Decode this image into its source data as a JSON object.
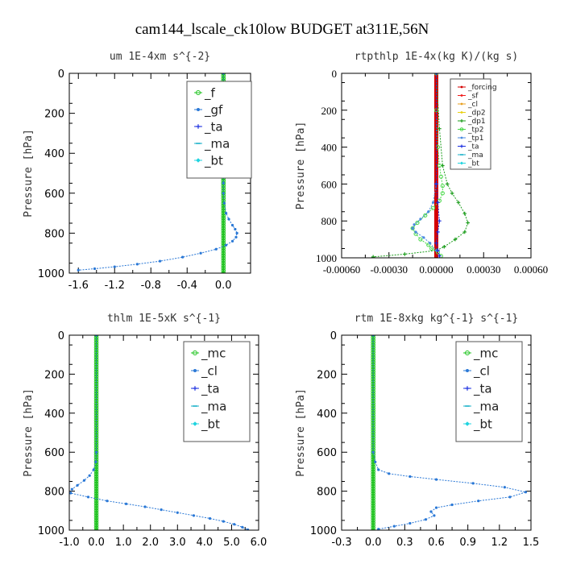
{
  "title": "cam144_lscale_ck10low  BUDGET at311E,56N",
  "chart_data": [
    {
      "type": "line",
      "title": "um   1E-4xm s^{-2}",
      "ylabel": "Pressure [hPa]",
      "xlim": [
        -1.7,
        0.3
      ],
      "ylim": [
        1000,
        0
      ],
      "xticks": [
        -1.6,
        -1.2,
        -0.8,
        -0.4,
        0.0
      ],
      "xtick_labels": [
        "-1.6",
        "-1.2",
        "-0.8",
        "-0.4",
        "0.0"
      ],
      "yticks": [
        0,
        200,
        400,
        600,
        800,
        1000
      ],
      "series": [
        {
          "name": "_f",
          "color": "#22c422",
          "marker": "circle",
          "x": [
            0,
            0
          ],
          "y": [
            0,
            1000
          ]
        },
        {
          "name": "_gf",
          "color": "#2a78d6",
          "marker": "dot",
          "x": [
            0.0,
            0.0,
            0.0,
            0.0,
            0.0,
            0.01,
            0.03,
            0.06,
            0.1,
            0.13,
            0.15,
            0.14,
            0.1,
            0.03,
            -0.08,
            -0.25,
            -0.45,
            -0.7,
            -0.95,
            -1.2,
            -1.42,
            -1.6
          ],
          "y": [
            0,
            200,
            400,
            550,
            600,
            650,
            700,
            730,
            760,
            780,
            800,
            820,
            840,
            860,
            880,
            900,
            920,
            940,
            955,
            968,
            978,
            985
          ]
        },
        {
          "name": "_ta",
          "color": "#1a2ee0",
          "marker": "plus",
          "x": [],
          "y": []
        },
        {
          "name": "_ma",
          "color": "#18b0c8",
          "marker": "dash",
          "x": [],
          "y": []
        },
        {
          "name": "_bt",
          "color": "#20d4e0",
          "marker": "diamond",
          "x": [],
          "y": []
        }
      ]
    },
    {
      "type": "line",
      "title": "rtpthlp   1E-4x(kg K)/(kg s)",
      "ylabel": "Pressure [hPa]",
      "xlim": [
        -0.0006,
        0.0006
      ],
      "ylim": [
        1000,
        0
      ],
      "xticks": [
        -0.0006,
        -0.0003,
        0.0,
        0.0003,
        0.0006
      ],
      "xtick_labels": [
        "-0.00060",
        "-0.00030",
        "0.00000",
        "0.00030",
        "0.00060"
      ],
      "yticks": [
        0,
        200,
        400,
        600,
        800,
        1000
      ],
      "series": [
        {
          "name": "_forcing",
          "color": "#d40000",
          "marker": "dot",
          "x": [
            0,
            0
          ],
          "y": [
            0,
            1000
          ]
        },
        {
          "name": "_sf",
          "color": "#f01a1a",
          "marker": "dot",
          "x": [],
          "y": []
        },
        {
          "name": "_cl",
          "color": "#e8a020",
          "marker": "dot",
          "x": [],
          "y": []
        },
        {
          "name": "_dp2",
          "color": "#e8d010",
          "marker": "dot",
          "x": [],
          "y": []
        },
        {
          "name": "_dp1",
          "color": "#1e9e1e",
          "marker": "plus",
          "x": [
            0.0,
            2e-05,
            4e-05,
            7e-05,
            0.0001,
            0.00014,
            0.00018,
            0.0002,
            0.00018,
            0.00012,
            5e-05,
            0.0,
            -0.0002,
            -0.0004
          ],
          "y": [
            0,
            300,
            500,
            600,
            650,
            700,
            760,
            810,
            860,
            900,
            940,
            960,
            980,
            995
          ]
        },
        {
          "name": "_tp2",
          "color": "#48d848",
          "marker": "circle",
          "x": [
            0.0,
            0.0,
            1e-05,
            2e-05,
            3e-05,
            4e-05,
            4e-05,
            2e-05,
            -2e-05,
            -7e-05,
            -0.00012,
            -0.00015,
            -0.00013,
            -0.0001,
            -5e-05,
            -3e-05,
            1e-05,
            3e-05
          ],
          "y": [
            0,
            200,
            400,
            500,
            560,
            610,
            650,
            690,
            730,
            770,
            810,
            840,
            870,
            900,
            930,
            950,
            970,
            990
          ]
        },
        {
          "name": "_tp1",
          "color": "#4a8ae0",
          "marker": "dot",
          "x": [
            0.0,
            0.0,
            -2e-05,
            -5e-05,
            -0.0001,
            -0.00014,
            -0.00015,
            -0.00013,
            -8e-05,
            -4e-05,
            0.0
          ],
          "y": [
            0,
            600,
            700,
            750,
            790,
            820,
            840,
            860,
            890,
            920,
            960
          ]
        },
        {
          "name": "_ta",
          "color": "#1a2ee0",
          "marker": "plus",
          "x": [
            0.0,
            0.0,
            1e-05,
            2e-05,
            1e-05,
            0.0,
            1e-05,
            2e-05
          ],
          "y": [
            0,
            600,
            700,
            800,
            860,
            920,
            960,
            990
          ]
        },
        {
          "name": "_ma",
          "color": "#18b0c8",
          "marker": "dash",
          "x": [],
          "y": []
        },
        {
          "name": "_bt",
          "color": "#20d4e0",
          "marker": "diamond",
          "x": [],
          "y": []
        }
      ]
    },
    {
      "type": "line",
      "title": "thlm   1E-5xK s^{-1}",
      "ylabel": "Pressure [hPa]",
      "xlim": [
        -1.0,
        6.0
      ],
      "ylim": [
        1000,
        0
      ],
      "xticks": [
        -1.0,
        0.0,
        1.0,
        2.0,
        3.0,
        4.0,
        5.0,
        6.0
      ],
      "xtick_labels": [
        "-1.0",
        "0.0",
        "1.0",
        "2.0",
        "3.0",
        "4.0",
        "5.0",
        "6.0"
      ],
      "yticks": [
        0,
        200,
        400,
        600,
        800,
        1000
      ],
      "series": [
        {
          "name": "_mc",
          "color": "#22c422",
          "marker": "circle",
          "x": [
            0,
            0
          ],
          "y": [
            0,
            1000
          ]
        },
        {
          "name": "_cl",
          "color": "#2a78d6",
          "marker": "dot",
          "x": [
            0.0,
            0.0,
            -0.02,
            -0.1,
            -0.25,
            -0.45,
            -0.7,
            -0.9,
            -0.95,
            -0.3,
            0.4,
            1.1,
            1.8,
            2.4,
            3.0,
            3.6,
            4.2,
            4.7,
            5.1,
            5.4,
            5.6
          ],
          "y": [
            0,
            600,
            650,
            690,
            720,
            745,
            770,
            790,
            810,
            830,
            850,
            865,
            880,
            895,
            910,
            925,
            940,
            955,
            970,
            985,
            998
          ]
        },
        {
          "name": "_ta",
          "color": "#1a2ee0",
          "marker": "plus",
          "x": [],
          "y": []
        },
        {
          "name": "_ma",
          "color": "#18b0c8",
          "marker": "dash",
          "x": [],
          "y": []
        },
        {
          "name": "_bt",
          "color": "#20d4e0",
          "marker": "diamond",
          "x": [],
          "y": []
        }
      ]
    },
    {
      "type": "line",
      "title": "rtm   1E-8xkg kg^{-1} s^{-1}",
      "ylabel": "Pressure [hPa]",
      "xlim": [
        -0.3,
        1.5
      ],
      "ylim": [
        1000,
        0
      ],
      "xticks": [
        -0.3,
        0.0,
        0.3,
        0.6,
        0.9,
        1.2,
        1.5
      ],
      "xtick_labels": [
        "-0.3",
        "0.0",
        "0.3",
        "0.6",
        "0.9",
        "1.2",
        "1.5"
      ],
      "yticks": [
        0,
        200,
        400,
        600,
        800,
        1000
      ],
      "series": [
        {
          "name": "_mc",
          "color": "#22c422",
          "marker": "circle",
          "x": [
            0,
            0
          ],
          "y": [
            0,
            1000
          ]
        },
        {
          "name": "_cl",
          "color": "#2a78d6",
          "marker": "dot",
          "x": [
            0.0,
            0.0,
            0.02,
            0.05,
            0.15,
            0.35,
            0.6,
            0.95,
            1.25,
            1.45,
            1.3,
            1.0,
            0.75,
            0.6,
            0.55,
            0.58,
            0.5,
            0.35,
            0.2,
            0.05
          ],
          "y": [
            0,
            600,
            650,
            690,
            710,
            725,
            740,
            760,
            780,
            805,
            830,
            850,
            870,
            885,
            905,
            925,
            945,
            965,
            980,
            995
          ]
        },
        {
          "name": "_ta",
          "color": "#1a2ee0",
          "marker": "plus",
          "x": [],
          "y": []
        },
        {
          "name": "_ma",
          "color": "#18b0c8",
          "marker": "dash",
          "x": [],
          "y": []
        },
        {
          "name": "_bt",
          "color": "#20d4e0",
          "marker": "diamond",
          "x": [],
          "y": []
        }
      ]
    }
  ]
}
